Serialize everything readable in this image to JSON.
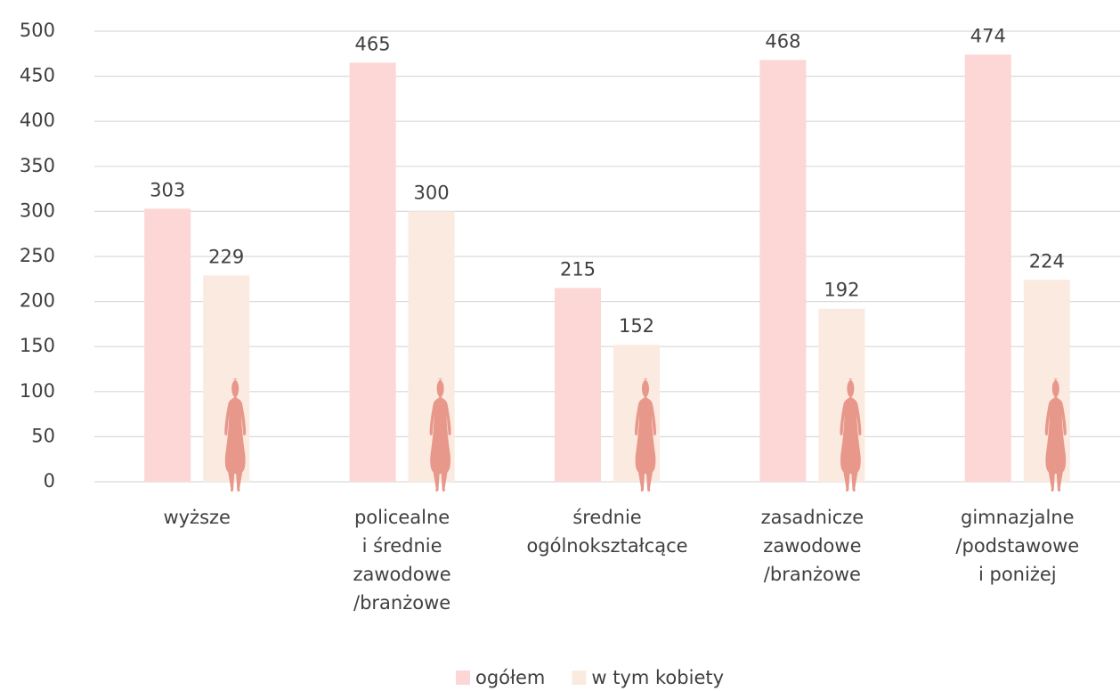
{
  "chart_data": {
    "type": "bar",
    "categories": [
      "wyższe",
      "policealne\ni średnie\nzawodowe\n/branżowe",
      "średnie\nogólnokształcące",
      "zasadnicze\nzawodowe\n/branżowe",
      "gimnazjalne\n/podstawowe\ni poniżej"
    ],
    "series": [
      {
        "name": "ogółem",
        "color": "#fdd6d6",
        "values": [
          303,
          465,
          215,
          468,
          474
        ]
      },
      {
        "name": "w tym kobiety",
        "color": "#fbeadf",
        "values": [
          229,
          300,
          152,
          192,
          224
        ]
      }
    ],
    "ylim": [
      0,
      500
    ],
    "yticks": [
      0,
      50,
      100,
      150,
      200,
      250,
      300,
      350,
      400,
      450,
      500
    ],
    "grid": true,
    "legend": "bottom"
  }
}
